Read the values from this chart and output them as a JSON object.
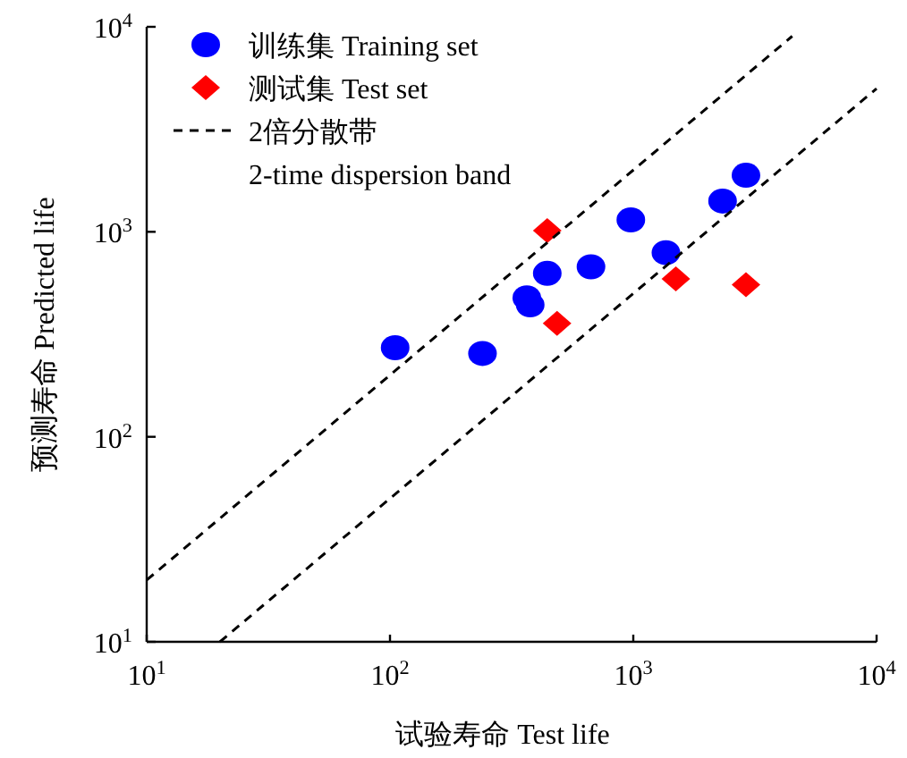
{
  "chart_data": {
    "type": "scatter",
    "xlabel": "试验寿命 Test life",
    "ylabel": "预测寿命 Predicted life",
    "log": "xy",
    "xlim": [
      10,
      10000
    ],
    "ylim": [
      10,
      10000
    ],
    "xticks": [
      {
        "value": 10,
        "label": "10$^{1}$"
      },
      {
        "value": 100,
        "label": "10$^{2}$"
      },
      {
        "value": 1000,
        "label": "10$^{3}$"
      },
      {
        "value": 10000,
        "label": "10$^{4}$"
      }
    ],
    "yticks": [
      {
        "value": 10,
        "label": "10$^{1}$"
      },
      {
        "value": 100,
        "label": "10$^{2}$"
      },
      {
        "value": 1000,
        "label": "10$^{3}$"
      },
      {
        "value": 10000,
        "label": "10$^{4}$"
      }
    ],
    "legend": "top left",
    "series": [
      {
        "name": "训练集 Training set",
        "marker": "circle",
        "color": "#0000ff",
        "x": [
          105,
          240,
          365,
          377,
          443,
          670,
          977,
          1362,
          2328,
          2905
        ],
        "values": [
          272,
          255,
          476,
          440,
          627,
          675,
          1143,
          791,
          1413,
          1888
        ]
      },
      {
        "name": "测试集 Test set",
        "marker": "diamond",
        "color": "#ff0000",
        "x": [
          443,
          486,
          1496,
          2905
        ],
        "values": [
          1014,
          358,
          590,
          552
        ]
      },
      {
        "name": "2倍分散带\n2-time dispersion band",
        "type": "line",
        "marker": "none",
        "line_style": "dashed",
        "color": "#000000",
        "x": [
          10,
          4500
        ],
        "values": [
          20,
          9000
        ]
      },
      {
        "type": "line",
        "marker": "none",
        "line_style": "dashed",
        "color": "#000000",
        "x": [
          20,
          10000
        ],
        "values": [
          10,
          5000
        ]
      }
    ]
  }
}
